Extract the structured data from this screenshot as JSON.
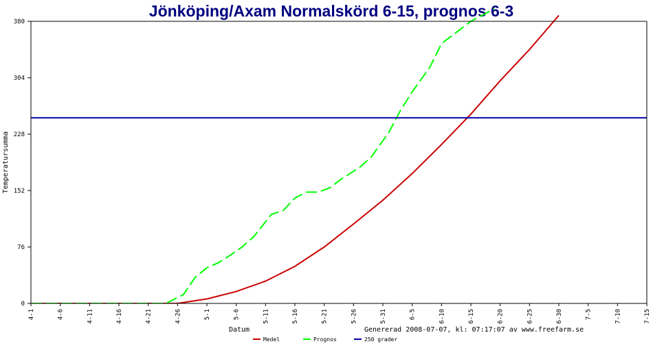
{
  "chart_data": {
    "type": "line",
    "title": "Jönköping/Axam Normalskörd 6-15, prognos 6-3",
    "xlabel": "Datum",
    "ylabel": "Temperatursumma",
    "footer": "Genererad 2008-07-07, kl: 07:17:07 av www.freefarm.se",
    "x_ticks": [
      "4-1",
      "4-6",
      "4-11",
      "4-16",
      "4-21",
      "4-26",
      "5-1",
      "5-6",
      "5-11",
      "5-16",
      "5-21",
      "5-26",
      "5-31",
      "6-5",
      "6-10",
      "6-15",
      "6-20",
      "6-25",
      "6-30",
      "7-5",
      "7-10",
      "7-15"
    ],
    "xlim": [
      "4-1",
      "7-15"
    ],
    "ylim": [
      0,
      380
    ],
    "y_ticks": [
      0,
      76,
      152,
      228,
      304,
      380
    ],
    "grid": false,
    "legend_position": "bottom",
    "colors": {
      "title": "#000080",
      "medel": "#cc0000",
      "prognos": "#00ff00",
      "threshold": "#0000aa"
    },
    "series": [
      {
        "name": "Medel",
        "color": "#cc0000",
        "style": "solid",
        "points": [
          [
            "4-1",
            0
          ],
          [
            "4-26",
            0
          ],
          [
            "5-1",
            6
          ],
          [
            "5-6",
            16
          ],
          [
            "5-11",
            30
          ],
          [
            "5-16",
            50
          ],
          [
            "5-21",
            76
          ],
          [
            "5-26",
            107
          ],
          [
            "5-31",
            139
          ],
          [
            "6-5",
            175
          ],
          [
            "6-10",
            214
          ],
          [
            "6-15",
            255
          ],
          [
            "6-20",
            300
          ],
          [
            "6-25",
            342
          ],
          [
            "6-30",
            388
          ]
        ]
      },
      {
        "name": "Prognos",
        "color": "#00ff00",
        "style": "dashed",
        "points": [
          [
            "4-1",
            0
          ],
          [
            "4-24",
            0
          ],
          [
            "4-27",
            12
          ],
          [
            "4-29",
            35
          ],
          [
            "5-1",
            48
          ],
          [
            "5-3",
            55
          ],
          [
            "5-5",
            65
          ],
          [
            "5-7",
            76
          ],
          [
            "5-9",
            90
          ],
          [
            "5-12",
            120
          ],
          [
            "5-14",
            125
          ],
          [
            "5-16",
            142
          ],
          [
            "5-18",
            150
          ],
          [
            "5-20",
            150
          ],
          [
            "5-22",
            156
          ],
          [
            "5-24",
            168
          ],
          [
            "5-27",
            183
          ],
          [
            "5-29",
            197
          ],
          [
            "6-1",
            230
          ],
          [
            "6-3",
            260
          ],
          [
            "6-5",
            285
          ],
          [
            "6-8",
            318
          ],
          [
            "6-10",
            350
          ],
          [
            "6-12",
            362
          ],
          [
            "6-15",
            380
          ],
          [
            "6-19",
            397
          ]
        ]
      },
      {
        "name": "250 grader",
        "color": "#0000aa",
        "style": "solid",
        "points": [
          [
            "4-1",
            250
          ],
          [
            "7-15",
            250
          ]
        ]
      }
    ]
  }
}
